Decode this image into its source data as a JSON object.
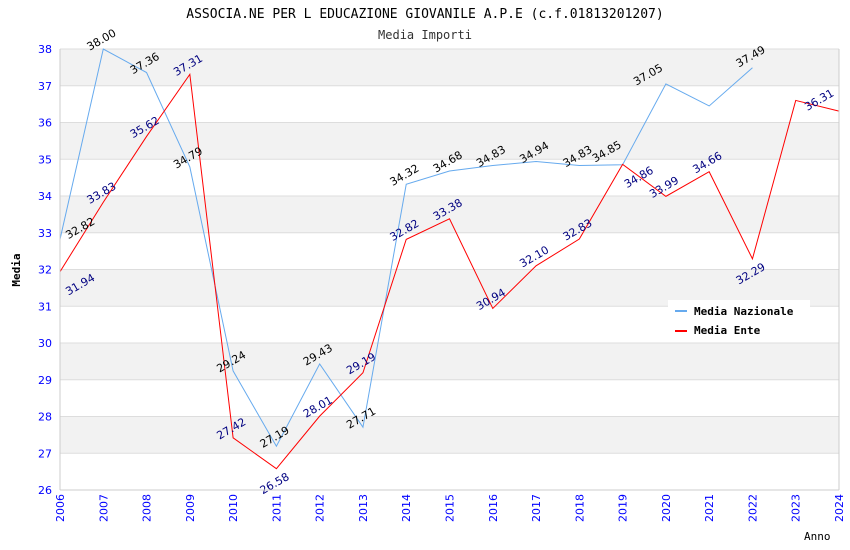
{
  "chart_data": {
    "type": "line",
    "title": "ASSOCIA.NE PER L EDUCAZIONE GIOVANILE A.P.E (c.f.01813201207)",
    "subtitle": "Media Importi",
    "xlabel": "Anno",
    "ylabel": "Media",
    "ylim": [
      26,
      38
    ],
    "yticks": [
      "26",
      "27",
      "28",
      "29",
      "30",
      "31",
      "32",
      "33",
      "34",
      "35",
      "36",
      "37",
      "38"
    ],
    "x": [
      "2006",
      "2007",
      "2008",
      "2009",
      "2010",
      "2011",
      "2012",
      "2013",
      "2014",
      "2015",
      "2016",
      "2017",
      "2018",
      "2019",
      "2020",
      "2021",
      "2022",
      "2023",
      "2024"
    ],
    "grid": true,
    "legend": "top-right",
    "series": [
      {
        "name": "Media Nazionale",
        "color": "#66aaee",
        "label_color": "#000000",
        "values": [
          32.82,
          38.0,
          37.36,
          34.79,
          29.24,
          27.19,
          29.43,
          27.71,
          34.32,
          34.68,
          34.83,
          34.94,
          34.83,
          34.85,
          37.05,
          36.45,
          37.49,
          null,
          null
        ],
        "labels": [
          "32.82",
          "38.00",
          "37.36",
          "34.79",
          "29.24",
          "27.19",
          "29.43",
          "27.71",
          "34.32",
          "34.68",
          "34.83",
          "34.94",
          "34.83",
          "34.85",
          "37.05",
          "",
          "37.49",
          "",
          ""
        ]
      },
      {
        "name": "Media Ente",
        "color": "#ff0000",
        "label_color": "#000080",
        "values": [
          31.94,
          33.83,
          35.62,
          37.31,
          27.42,
          26.58,
          28.01,
          29.19,
          32.82,
          33.38,
          30.94,
          32.1,
          32.83,
          34.86,
          33.99,
          34.66,
          32.29,
          36.6,
          36.31
        ],
        "labels": [
          "31.94",
          "33.83",
          "35.62",
          "37.31",
          "27.42",
          "26.58",
          "28.01",
          "29.19",
          "32.82",
          "33.38",
          "30.94",
          "32.10",
          "32.83",
          "34.86",
          "33.99",
          "34.66",
          "32.29",
          "",
          "36.31"
        ]
      }
    ]
  }
}
